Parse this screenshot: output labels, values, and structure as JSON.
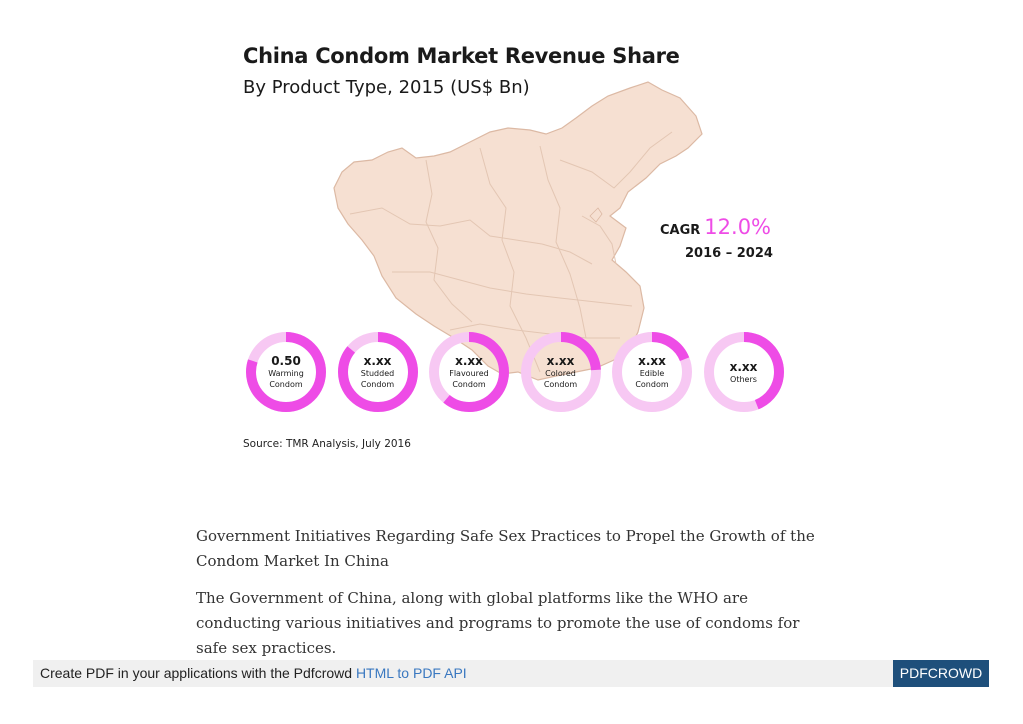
{
  "infographic": {
    "title": "China Condom Market Revenue Share",
    "subtitle": "By Product Type, 2015 (US$ Bn)",
    "cagr_label": "CAGR",
    "cagr_value": "12.0%",
    "cagr_period": "2016 – 2024",
    "source": "Source: TMR Analysis, July 2016",
    "colors": {
      "accent": "#ee4ce6",
      "ring_light": "#f7c8f3",
      "map_fill": "#f6e0d2",
      "map_line": "#dcb9a4"
    }
  },
  "chart_data": {
    "type": "donut",
    "title": "China Condom Market Revenue Share",
    "subtitle": "By Product Type, 2015 (US$ Bn)",
    "items": [
      {
        "value": "0.50",
        "label_line1": "Warming",
        "label_line2": "Condom",
        "share": 0.8
      },
      {
        "value": "x.xx",
        "label_line1": "Studded",
        "label_line2": "Condom",
        "share": 0.86
      },
      {
        "value": "x.xx",
        "label_line1": "Flavoured",
        "label_line2": "Condom",
        "share": 0.61
      },
      {
        "value": "x.xx",
        "label_line1": "Colored",
        "label_line2": "Condom",
        "share": 0.24
      },
      {
        "value": "x.xx",
        "label_line1": "Edible",
        "label_line2": "Condom",
        "share": 0.19
      },
      {
        "value": "x.xx",
        "label_line1": "Others",
        "label_line2": "",
        "share": 0.44
      }
    ]
  },
  "article": {
    "heading": "Government Initiatives Regarding Safe Sex Practices to Propel the Growth of the Condom Market In China",
    "body": "The Government of China, along with global platforms like the WHO are conducting various initiatives and programs to promote the use of condoms for safe sex practices."
  },
  "footer": {
    "text": "Create PDF in your applications with the Pdfcrowd",
    "link": "HTML to PDF API",
    "badge": "PDFCROWD"
  }
}
